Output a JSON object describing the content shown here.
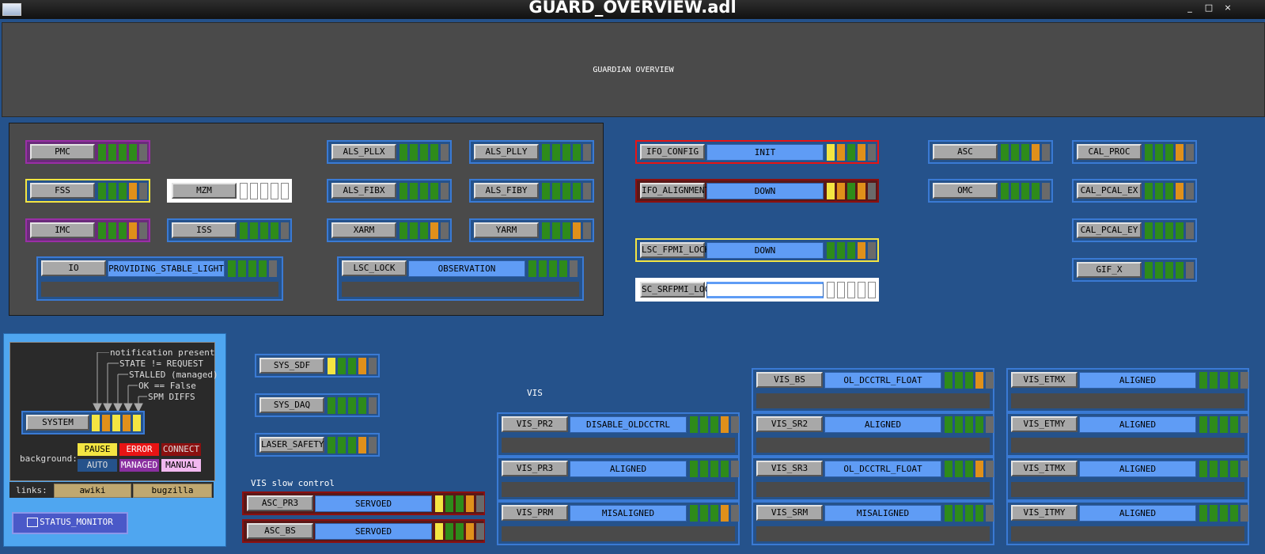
{
  "window": {
    "title": "GUARD_OVERVIEW.adl",
    "controls": [
      "_",
      "□",
      "×"
    ]
  },
  "header": {
    "title": "GUARDIAN OVERVIEW"
  },
  "colors": {
    "green": "#2e8b1a",
    "orange": "#e0901a",
    "gray": "#6a6a6a",
    "yellow": "#f4e542",
    "state_blue": "#5f9cf5"
  },
  "nodes": {
    "PMC": {
      "label": "PMC"
    },
    "FSS": {
      "label": "FSS"
    },
    "IMC": {
      "label": "IMC"
    },
    "MZM": {
      "label": "MZM"
    },
    "ISS": {
      "label": "ISS"
    },
    "IO": {
      "label": "IO",
      "state": "PROVIDING_STABLE_LIGHT"
    },
    "ALS_PLLX": {
      "label": "ALS_PLLX"
    },
    "ALS_PLLY": {
      "label": "ALS_PLLY"
    },
    "ALS_FIBX": {
      "label": "ALS_FIBX"
    },
    "ALS_FIBY": {
      "label": "ALS_FIBY"
    },
    "XARM": {
      "label": "XARM"
    },
    "YARM": {
      "label": "YARM"
    },
    "LSC_LOCK": {
      "label": "LSC_LOCK",
      "state": "OBSERVATION"
    },
    "IFO_CONFIG": {
      "label": "IFO_CONFIG",
      "state": "INIT"
    },
    "IFO_ALIGNMENT": {
      "label": "IFO_ALIGNMENT",
      "state": "DOWN"
    },
    "LSC_FPMI_LOCK": {
      "label": "LSC_FPMI_LOCK",
      "state": "DOWN"
    },
    "SC_SRFPMI_LOC": {
      "label": "SC_SRFPMI_LOC",
      "state": ""
    },
    "ASC": {
      "label": "ASC"
    },
    "OMC": {
      "label": "OMC"
    },
    "CAL_PROC": {
      "label": "CAL_PROC"
    },
    "CAL_PCAL_EX": {
      "label": "CAL_PCAL_EX"
    },
    "CAL_PCAL_EY": {
      "label": "CAL_PCAL_EY"
    },
    "GIF_X": {
      "label": "GIF_X"
    },
    "SYS_SDF": {
      "label": "SYS_SDF"
    },
    "SYS_DAQ": {
      "label": "SYS_DAQ"
    },
    "LASER_SAFETY": {
      "label": "LASER_SAFETY"
    },
    "ASC_PR3": {
      "label": "ASC_PR3",
      "state": "SERVOED"
    },
    "ASC_BS": {
      "label": "ASC_BS",
      "state": "SERVOED"
    },
    "VIS_PR2": {
      "label": "VIS_PR2",
      "state": "DISABLE_OLDCCTRL"
    },
    "VIS_PR3": {
      "label": "VIS_PR3",
      "state": "ALIGNED"
    },
    "VIS_PRM": {
      "label": "VIS_PRM",
      "state": "MISALIGNED"
    },
    "VIS_BS": {
      "label": "VIS_BS",
      "state": "OL_DCCTRL_FLOAT"
    },
    "VIS_SR2": {
      "label": "VIS_SR2",
      "state": "ALIGNED"
    },
    "VIS_SR3": {
      "label": "VIS_SR3",
      "state": "OL_DCCTRL_FLOAT"
    },
    "VIS_SRM": {
      "label": "VIS_SRM",
      "state": "MISALIGNED"
    },
    "VIS_ETMX": {
      "label": "VIS_ETMX",
      "state": "ALIGNED"
    },
    "VIS_ETMY": {
      "label": "VIS_ETMY",
      "state": "ALIGNED"
    },
    "VIS_ITMX": {
      "label": "VIS_ITMX",
      "state": "ALIGNED"
    },
    "VIS_ITMY": {
      "label": "VIS_ITMY",
      "state": "ALIGNED"
    }
  },
  "labels": {
    "vis": "VIS",
    "vis_slow_control": "VIS slow control"
  },
  "legend": {
    "notes": [
      "notification present",
      "STATE != REQUEST",
      "STALLED (managed)",
      "OK == False",
      "SPM DIFFS"
    ],
    "system_label": "SYSTEM",
    "background_label": "background:",
    "bg": {
      "pause": "PAUSE",
      "error": "ERROR",
      "connect": "CONNECT",
      "auto": "AUTO",
      "managed": "MANAGED",
      "manual": "MANUAL"
    },
    "links_label": "links:",
    "links": [
      "awiki",
      "bugzilla"
    ]
  },
  "status_monitor": {
    "label": "STATUS_MONITOR"
  }
}
